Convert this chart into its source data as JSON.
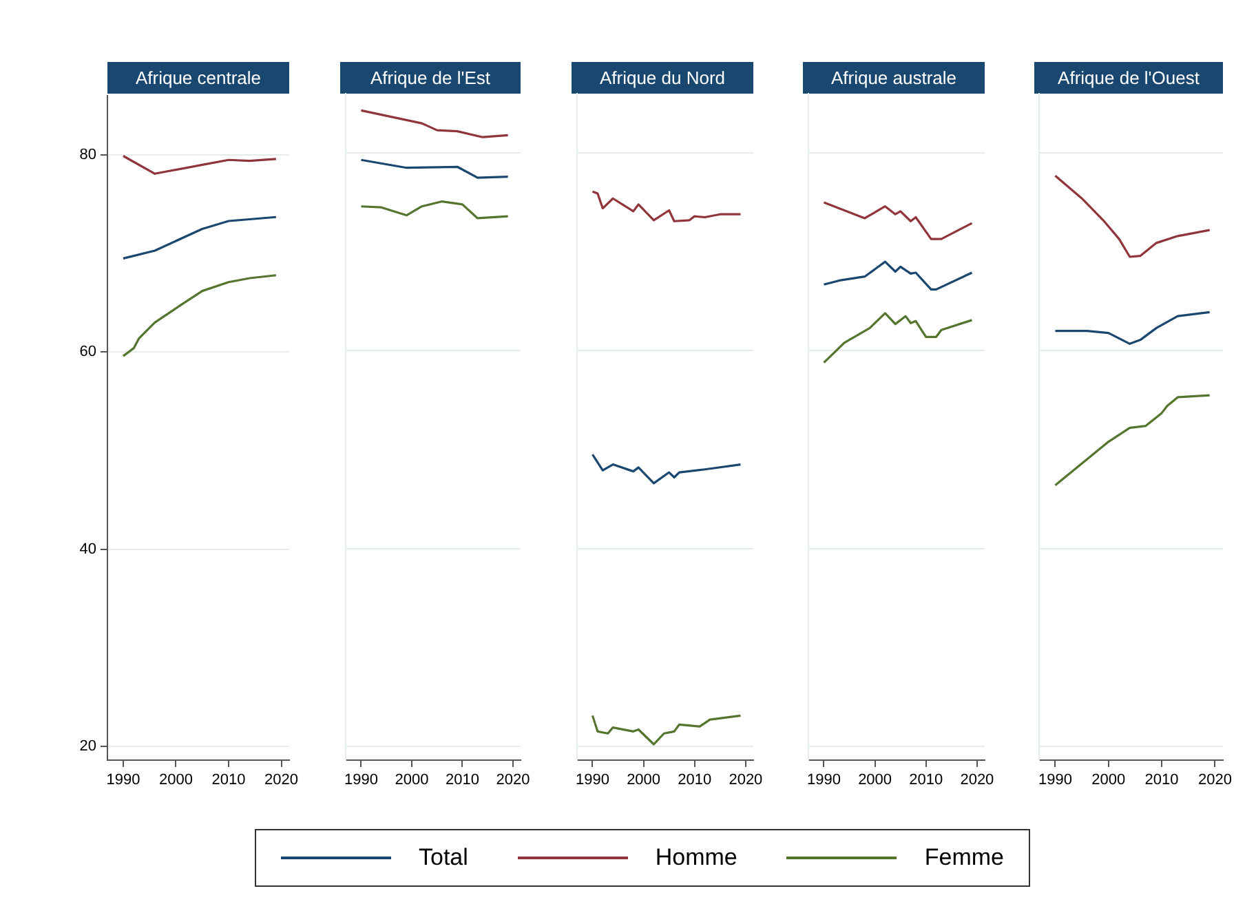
{
  "chart_data": [
    {
      "type": "line",
      "title": "Afrique centrale",
      "xlim": [
        1987,
        2021.5
      ],
      "xticks": [
        1990,
        2000,
        2010,
        2020
      ],
      "ylim": [
        18.6,
        86
      ],
      "yticks": [
        20,
        40,
        60,
        80
      ],
      "grid": "y",
      "legend": "bottom",
      "series": [
        {
          "name": "Total",
          "color": "#1a476f",
          "x": [
            1990,
            1996,
            2005,
            2010,
            2019
          ],
          "values": [
            69.5,
            70.3,
            72.5,
            73.3,
            73.7
          ]
        },
        {
          "name": "Homme",
          "color": "#90353b",
          "x": [
            1990,
            1996,
            2005,
            2010,
            2014,
            2019
          ],
          "values": [
            79.9,
            78.1,
            79.0,
            79.5,
            79.4,
            79.6
          ]
        },
        {
          "name": "Femme",
          "color": "#55752f",
          "x": [
            1990,
            1992,
            1993,
            1996,
            2001,
            2005,
            2010,
            2014,
            2019
          ],
          "values": [
            59.6,
            60.4,
            61.4,
            63.0,
            64.8,
            66.2,
            67.1,
            67.5,
            67.8
          ]
        }
      ]
    },
    {
      "type": "line",
      "title": "Afrique de l'Est",
      "xlim": [
        1987,
        2021.5
      ],
      "xticks": [
        1990,
        2000,
        2010,
        2020
      ],
      "ylim": [
        18.6,
        86
      ],
      "yticks": [
        20,
        40,
        60,
        80
      ],
      "grid": "y",
      "tick_labels": "x",
      "series": [
        {
          "color": "#1a476f",
          "x": [
            1990,
            1999,
            2009,
            2013,
            2019
          ],
          "values": [
            79.3,
            78.5,
            78.6,
            77.5,
            77.6
          ]
        },
        {
          "color": "#90353b",
          "x": [
            1990,
            2002,
            2005,
            2009,
            2014,
            2019
          ],
          "values": [
            84.3,
            83.0,
            82.3,
            82.2,
            81.6,
            81.8
          ]
        },
        {
          "color": "#55752f",
          "x": [
            1990,
            1994,
            1999,
            2002,
            2006,
            2010,
            2013,
            2019
          ],
          "values": [
            74.6,
            74.5,
            73.7,
            74.6,
            75.1,
            74.8,
            73.4,
            73.6
          ]
        }
      ]
    },
    {
      "type": "line",
      "title": "Afrique du Nord",
      "xlim": [
        1987,
        2021.5
      ],
      "xticks": [
        1990,
        2000,
        2010,
        2020
      ],
      "ylim": [
        18.6,
        86
      ],
      "yticks": [
        20,
        40,
        60,
        80
      ],
      "grid": "y",
      "tick_labels": "x",
      "series": [
        {
          "color": "#1a476f",
          "x": [
            1990,
            1992,
            1994,
            1998,
            1999,
            2002,
            2005,
            2006,
            2007,
            2012,
            2019
          ],
          "values": [
            49.5,
            47.9,
            48.5,
            47.8,
            48.2,
            46.6,
            47.7,
            47.2,
            47.7,
            48.0,
            48.5
          ]
        },
        {
          "color": "#90353b",
          "x": [
            1990,
            1991,
            1992,
            1994,
            1998,
            1999,
            2002,
            2005,
            2006,
            2009,
            2010,
            2012,
            2015,
            2019
          ],
          "values": [
            76.1,
            75.9,
            74.4,
            75.4,
            74.1,
            74.8,
            73.2,
            74.2,
            73.1,
            73.2,
            73.6,
            73.5,
            73.8,
            73.8
          ]
        },
        {
          "color": "#55752f",
          "x": [
            1990,
            1991,
            1993,
            1994,
            1998,
            1999,
            2002,
            2004,
            2006,
            2007,
            2011,
            2013,
            2019
          ],
          "values": [
            23.1,
            21.5,
            21.3,
            21.9,
            21.5,
            21.7,
            20.2,
            21.3,
            21.5,
            22.2,
            22.0,
            22.7,
            23.1
          ]
        }
      ]
    },
    {
      "type": "line",
      "title": "Afrique australe",
      "xlim": [
        1987,
        2021.5
      ],
      "xticks": [
        1990,
        2000,
        2010,
        2020
      ],
      "ylim": [
        18.6,
        86
      ],
      "yticks": [
        20,
        40,
        60,
        80
      ],
      "grid": "y",
      "tick_labels": "x",
      "series": [
        {
          "color": "#1a476f",
          "x": [
            1990,
            1993,
            1998,
            2002,
            2004,
            2005,
            2007,
            2008,
            2011,
            2012,
            2019
          ],
          "values": [
            66.7,
            67.1,
            67.5,
            69.0,
            68.0,
            68.5,
            67.8,
            67.9,
            66.2,
            66.2,
            67.9
          ]
        },
        {
          "color": "#90353b",
          "x": [
            1990,
            1998,
            2002,
            2004,
            2005,
            2007,
            2008,
            2011,
            2013,
            2019
          ],
          "values": [
            75.0,
            73.4,
            74.6,
            73.8,
            74.1,
            73.1,
            73.5,
            71.3,
            71.3,
            72.9
          ]
        },
        {
          "color": "#55752f",
          "x": [
            1990,
            1994,
            1999,
            2002,
            2004,
            2006,
            2007,
            2008,
            2010,
            2012,
            2013,
            2019
          ],
          "values": [
            58.8,
            60.8,
            62.3,
            63.8,
            62.7,
            63.5,
            62.8,
            63.0,
            61.4,
            61.4,
            62.1,
            63.1
          ]
        }
      ]
    },
    {
      "type": "line",
      "title": "Afrique de l'Ouest",
      "xlim": [
        1987,
        2021.5
      ],
      "xticks": [
        1990,
        2000,
        2010,
        2020
      ],
      "ylim": [
        18.6,
        86
      ],
      "yticks": [
        20,
        40,
        60,
        80
      ],
      "grid": "y",
      "tick_labels": "x",
      "series": [
        {
          "color": "#1a476f",
          "x": [
            1990,
            1996,
            2000,
            2004,
            2006,
            2009,
            2013,
            2019
          ],
          "values": [
            62.0,
            62.0,
            61.8,
            60.7,
            61.1,
            62.3,
            63.5,
            63.9
          ]
        },
        {
          "color": "#90353b",
          "x": [
            1990,
            1995,
            1999,
            2002,
            2004,
            2006,
            2009,
            2013,
            2019
          ],
          "values": [
            77.7,
            75.4,
            73.2,
            71.3,
            69.5,
            69.6,
            70.9,
            71.6,
            72.2
          ]
        },
        {
          "color": "#55752f",
          "x": [
            1990,
            2000,
            2004,
            2007,
            2010,
            2011,
            2013,
            2019
          ],
          "values": [
            46.4,
            50.8,
            52.2,
            52.4,
            53.7,
            54.4,
            55.3,
            55.5
          ]
        }
      ]
    }
  ]
}
